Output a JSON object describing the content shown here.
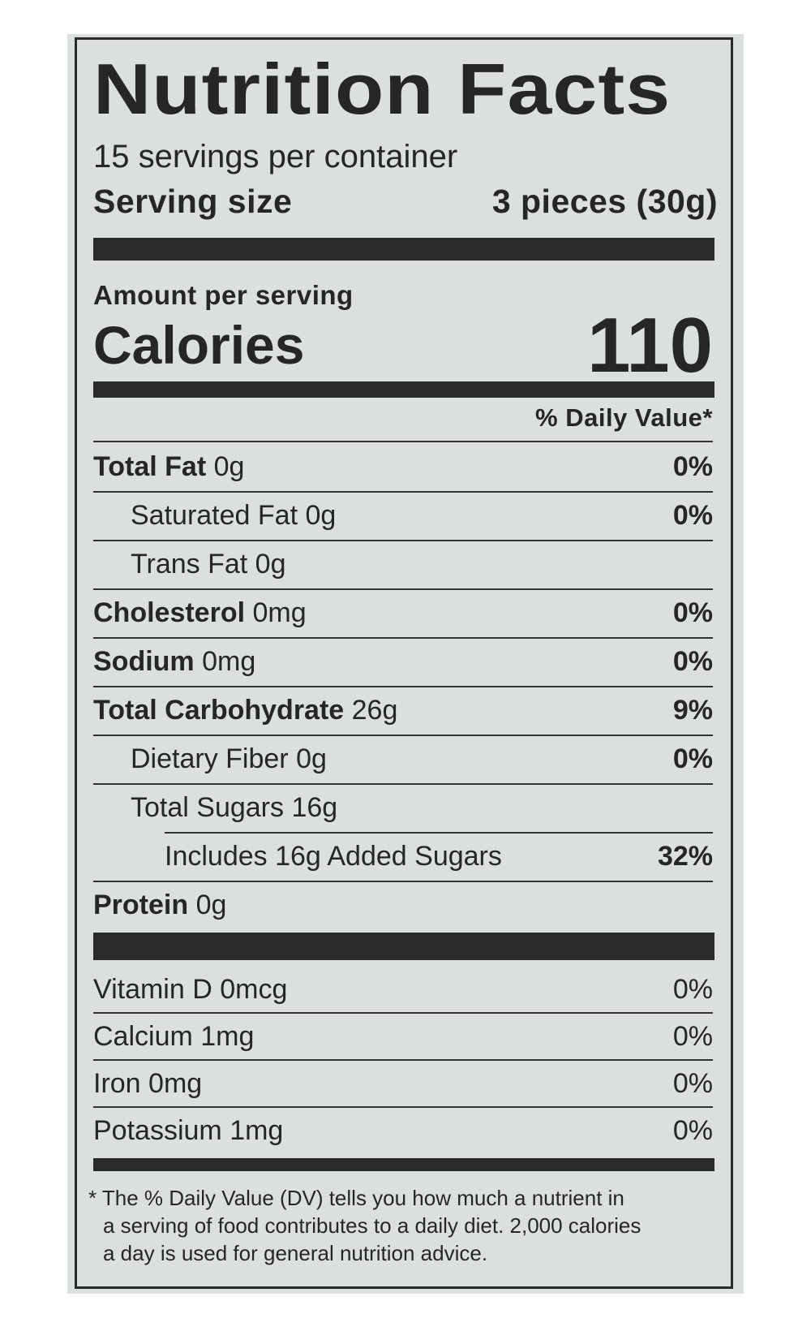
{
  "title": "Nutrition Facts",
  "servings_per_container": "15 servings per container",
  "serving_size": {
    "label": "Serving size",
    "value": "3 pieces (30g)"
  },
  "amount_per_serving": "Amount per serving",
  "calories": {
    "label": "Calories",
    "value": "110"
  },
  "daily_value_header": "% Daily Value*",
  "nutrients": [
    {
      "label": "Total Fat",
      "amount": "0g",
      "dv": "0%",
      "bold": true,
      "indent": 0
    },
    {
      "label": "Saturated Fat",
      "amount": "0g",
      "dv": "0%",
      "bold": false,
      "indent": 1
    },
    {
      "label": "Trans Fat",
      "amount": "0g",
      "dv": "",
      "bold": false,
      "indent": 1
    },
    {
      "label": "Cholesterol",
      "amount": "0mg",
      "dv": "0%",
      "bold": true,
      "indent": 0
    },
    {
      "label": "Sodium",
      "amount": "0mg",
      "dv": "0%",
      "bold": true,
      "indent": 0
    },
    {
      "label": "Total Carbohydrate",
      "amount": "26g",
      "dv": "9%",
      "bold": true,
      "indent": 0
    },
    {
      "label": "Dietary Fiber",
      "amount": "0g",
      "dv": "0%",
      "bold": false,
      "indent": 1
    },
    {
      "label": "Total Sugars",
      "amount": "16g",
      "dv": "",
      "bold": false,
      "indent": 1
    },
    {
      "label": "Includes 16g Added Sugars",
      "amount": "",
      "dv": "32%",
      "bold": false,
      "indent": 2
    },
    {
      "label": "Protein",
      "amount": "0g",
      "dv": "",
      "bold": true,
      "indent": 0
    }
  ],
  "vitamins": [
    {
      "label": "Vitamin D",
      "amount": "0mcg",
      "dv": "0%"
    },
    {
      "label": "Calcium",
      "amount": "1mg",
      "dv": "0%"
    },
    {
      "label": "Iron",
      "amount": "0mg",
      "dv": "0%"
    },
    {
      "label": "Potassium",
      "amount": "1mg",
      "dv": "0%"
    }
  ],
  "footnote": {
    "line1": "* The % Daily Value (DV) tells you how much a nutrient in",
    "line2": "a serving of food contributes to a daily diet. 2,000 calories",
    "line3": "a day is used for general nutrition advice."
  },
  "colors": {
    "background": "#dcdfe0",
    "ink": "#262626"
  }
}
